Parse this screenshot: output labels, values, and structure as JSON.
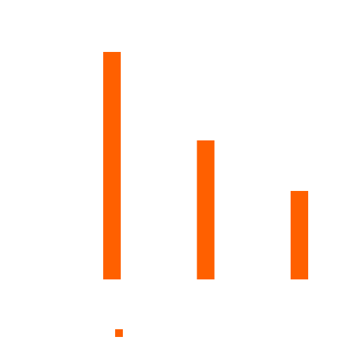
{
  "chart_data": {
    "type": "bar",
    "categories": [
      null,
      null,
      null
    ],
    "series": [
      {
        "color": "#ff6000",
        "values": [
          90,
          55,
          35
        ]
      }
    ],
    "ylim": [
      0,
      100
    ]
  }
}
